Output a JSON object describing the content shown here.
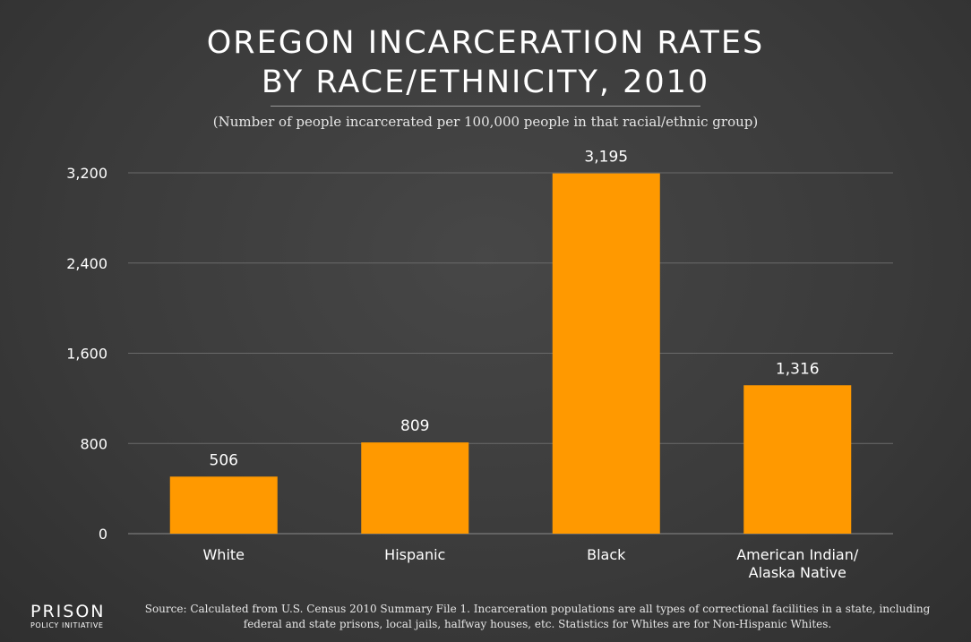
{
  "chart_data": {
    "type": "bar",
    "title_lines": [
      "OREGON INCARCERATION RATES",
      "BY RACE/ETHNICITY, 2010"
    ],
    "subtitle": "(Number of people incarcerated per 100,000 people in that racial/ethnic group)",
    "categories": [
      [
        "White"
      ],
      [
        "Hispanic"
      ],
      [
        "Black"
      ],
      [
        "American Indian/",
        "Alaska Native"
      ]
    ],
    "values": [
      506,
      809,
      3195,
      1316
    ],
    "value_labels": [
      "506",
      "809",
      "3,195",
      "1,316"
    ],
    "ylim": [
      0,
      3200
    ],
    "yticks": [
      0,
      800,
      1600,
      2400,
      3200
    ],
    "ytick_labels": [
      "0",
      "800",
      "1,600",
      "2,400",
      "3,200"
    ],
    "grid": true,
    "bar_color": "#ff9900",
    "xlabel": "",
    "ylabel": ""
  },
  "footer": {
    "logo_main": "PRISON",
    "logo_sub": "POLICY INITIATIVE",
    "source": "Source: Calculated from U.S. Census 2010 Summary File 1. Incarceration populations are all types of correctional facilities in a state, including federal and state prisons, local jails, halfway houses, etc. Statistics for Whites are for Non-Hispanic Whites."
  }
}
